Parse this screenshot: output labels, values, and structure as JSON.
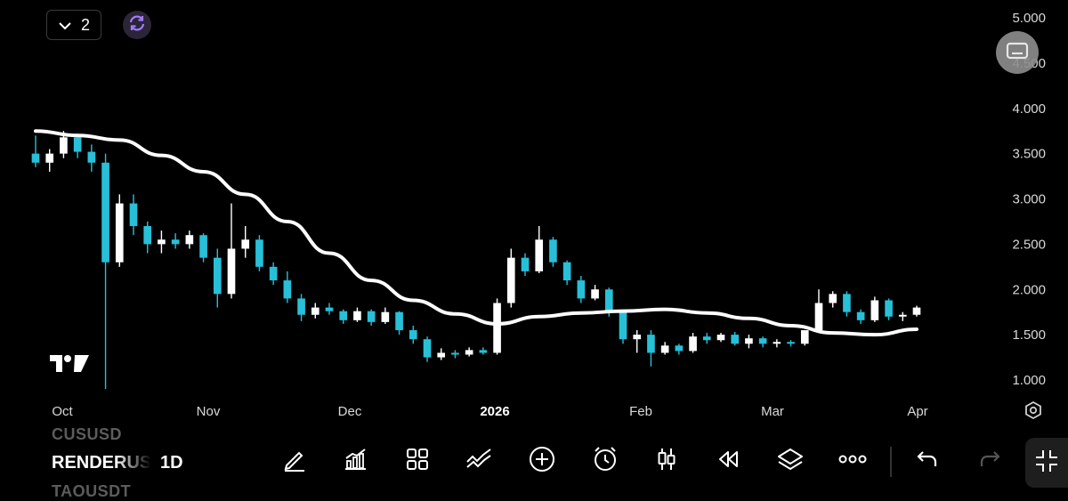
{
  "chart_data": {
    "type": "candlestick",
    "symbol": "RENDERUSD",
    "interval": "1D",
    "price_axis": {
      "min": 1.0,
      "max": 5.0,
      "ticks": [
        "5.000",
        "4.500",
        "4.000",
        "3.500",
        "3.000",
        "2.500",
        "2.000",
        "1.500",
        "1.000"
      ]
    },
    "time_axis": {
      "labels": [
        "Oct",
        "Nov",
        "Dec",
        "2026",
        "Feb",
        "Mar",
        "Apr"
      ]
    },
    "up_color": "#ffffff",
    "down_color": "#27c0d8",
    "ma_color": "#ffffff",
    "moving_average": [
      3.75,
      3.7,
      3.65,
      3.48,
      3.3,
      3.05,
      2.75,
      2.4,
      2.1,
      1.88,
      1.73,
      1.62,
      1.7,
      1.74,
      1.76,
      1.78,
      1.74,
      1.68,
      1.6,
      1.52,
      1.5,
      1.56
    ],
    "candles": [
      {
        "o": 3.5,
        "h": 3.7,
        "l": 3.35,
        "c": 3.4
      },
      {
        "o": 3.4,
        "h": 3.55,
        "l": 3.3,
        "c": 3.5
      },
      {
        "o": 3.5,
        "h": 3.75,
        "l": 3.45,
        "c": 3.68
      },
      {
        "o": 3.68,
        "h": 3.72,
        "l": 3.45,
        "c": 3.52
      },
      {
        "o": 3.52,
        "h": 3.6,
        "l": 3.3,
        "c": 3.4
      },
      {
        "o": 3.4,
        "h": 3.5,
        "l": 0.9,
        "c": 2.3
      },
      {
        "o": 2.3,
        "h": 3.05,
        "l": 2.25,
        "c": 2.95
      },
      {
        "o": 2.95,
        "h": 3.05,
        "l": 2.6,
        "c": 2.7
      },
      {
        "o": 2.7,
        "h": 2.75,
        "l": 2.4,
        "c": 2.5
      },
      {
        "o": 2.5,
        "h": 2.65,
        "l": 2.4,
        "c": 2.55
      },
      {
        "o": 2.55,
        "h": 2.62,
        "l": 2.45,
        "c": 2.5
      },
      {
        "o": 2.5,
        "h": 2.65,
        "l": 2.45,
        "c": 2.6
      },
      {
        "o": 2.6,
        "h": 2.62,
        "l": 2.3,
        "c": 2.35
      },
      {
        "o": 2.35,
        "h": 2.45,
        "l": 1.8,
        "c": 1.95
      },
      {
        "o": 1.95,
        "h": 2.95,
        "l": 1.9,
        "c": 2.45
      },
      {
        "o": 2.45,
        "h": 2.7,
        "l": 2.35,
        "c": 2.55
      },
      {
        "o": 2.55,
        "h": 2.6,
        "l": 2.2,
        "c": 2.25
      },
      {
        "o": 2.25,
        "h": 2.3,
        "l": 2.05,
        "c": 2.1
      },
      {
        "o": 2.1,
        "h": 2.2,
        "l": 1.85,
        "c": 1.9
      },
      {
        "o": 1.9,
        "h": 1.95,
        "l": 1.65,
        "c": 1.72
      },
      {
        "o": 1.72,
        "h": 1.85,
        "l": 1.68,
        "c": 1.8
      },
      {
        "o": 1.8,
        "h": 1.85,
        "l": 1.72,
        "c": 1.76
      },
      {
        "o": 1.76,
        "h": 1.78,
        "l": 1.62,
        "c": 1.66
      },
      {
        "o": 1.66,
        "h": 1.8,
        "l": 1.64,
        "c": 1.76
      },
      {
        "o": 1.76,
        "h": 1.78,
        "l": 1.6,
        "c": 1.64
      },
      {
        "o": 1.64,
        "h": 1.8,
        "l": 1.62,
        "c": 1.75
      },
      {
        "o": 1.75,
        "h": 1.76,
        "l": 1.5,
        "c": 1.55
      },
      {
        "o": 1.55,
        "h": 1.6,
        "l": 1.4,
        "c": 1.45
      },
      {
        "o": 1.45,
        "h": 1.48,
        "l": 1.2,
        "c": 1.25
      },
      {
        "o": 1.25,
        "h": 1.35,
        "l": 1.22,
        "c": 1.3
      },
      {
        "o": 1.3,
        "h": 1.33,
        "l": 1.24,
        "c": 1.28
      },
      {
        "o": 1.28,
        "h": 1.36,
        "l": 1.26,
        "c": 1.33
      },
      {
        "o": 1.33,
        "h": 1.36,
        "l": 1.28,
        "c": 1.3
      },
      {
        "o": 1.3,
        "h": 1.9,
        "l": 1.28,
        "c": 1.85
      },
      {
        "o": 1.85,
        "h": 2.45,
        "l": 1.8,
        "c": 2.35
      },
      {
        "o": 2.35,
        "h": 2.4,
        "l": 2.15,
        "c": 2.2
      },
      {
        "o": 2.2,
        "h": 2.7,
        "l": 2.18,
        "c": 2.55
      },
      {
        "o": 2.55,
        "h": 2.58,
        "l": 2.25,
        "c": 2.3
      },
      {
        "o": 2.3,
        "h": 2.32,
        "l": 2.05,
        "c": 2.1
      },
      {
        "o": 2.1,
        "h": 2.15,
        "l": 1.85,
        "c": 1.9
      },
      {
        "o": 1.9,
        "h": 2.05,
        "l": 1.88,
        "c": 2.0
      },
      {
        "o": 2.0,
        "h": 2.02,
        "l": 1.7,
        "c": 1.75
      },
      {
        "o": 1.75,
        "h": 1.78,
        "l": 1.4,
        "c": 1.45
      },
      {
        "o": 1.45,
        "h": 1.55,
        "l": 1.3,
        "c": 1.5
      },
      {
        "o": 1.5,
        "h": 1.55,
        "l": 1.15,
        "c": 1.3
      },
      {
        "o": 1.3,
        "h": 1.42,
        "l": 1.28,
        "c": 1.38
      },
      {
        "o": 1.38,
        "h": 1.4,
        "l": 1.28,
        "c": 1.32
      },
      {
        "o": 1.32,
        "h": 1.52,
        "l": 1.3,
        "c": 1.48
      },
      {
        "o": 1.48,
        "h": 1.52,
        "l": 1.4,
        "c": 1.44
      },
      {
        "o": 1.44,
        "h": 1.52,
        "l": 1.42,
        "c": 1.5
      },
      {
        "o": 1.5,
        "h": 1.53,
        "l": 1.38,
        "c": 1.4
      },
      {
        "o": 1.4,
        "h": 1.5,
        "l": 1.35,
        "c": 1.46
      },
      {
        "o": 1.46,
        "h": 1.48,
        "l": 1.36,
        "c": 1.4
      },
      {
        "o": 1.4,
        "h": 1.45,
        "l": 1.36,
        "c": 1.42
      },
      {
        "o": 1.42,
        "h": 1.44,
        "l": 1.37,
        "c": 1.4
      },
      {
        "o": 1.4,
        "h": 1.55,
        "l": 1.38,
        "c": 1.55
      },
      {
        "o": 1.55,
        "h": 2.0,
        "l": 1.52,
        "c": 1.85
      },
      {
        "o": 1.85,
        "h": 1.98,
        "l": 1.8,
        "c": 1.95
      },
      {
        "o": 1.95,
        "h": 1.98,
        "l": 1.7,
        "c": 1.75
      },
      {
        "o": 1.75,
        "h": 1.78,
        "l": 1.62,
        "c": 1.66
      },
      {
        "o": 1.66,
        "h": 1.92,
        "l": 1.64,
        "c": 1.88
      },
      {
        "o": 1.88,
        "h": 1.9,
        "l": 1.66,
        "c": 1.7
      },
      {
        "o": 1.7,
        "h": 1.75,
        "l": 1.65,
        "c": 1.72
      },
      {
        "o": 1.72,
        "h": 1.82,
        "l": 1.7,
        "c": 1.8
      }
    ]
  },
  "header": {
    "interval_count": "2"
  },
  "icons": {
    "chevron": "chevron-down-icon",
    "sync": "sync-icon",
    "screen": "screen-toggle-icon",
    "settings": "settings-icon",
    "logo": "tradingview-logo"
  },
  "bottom": {
    "symbol": "RENDERUSD",
    "symbol_prev": "CUSUSD",
    "symbol_next": "TAOUSDT",
    "timeframe": "1D",
    "tools": [
      "draw-icon",
      "indicators-icon",
      "layouts-icon",
      "trendline-icon",
      "add-icon",
      "alert-icon",
      "chart-type-icon",
      "replay-icon",
      "layers-icon",
      "more-icon",
      "undo-icon",
      "redo-icon"
    ]
  },
  "colors": {
    "background": "#000000",
    "accent": "#9b6bff",
    "axis_text": "#d9d9d9"
  }
}
